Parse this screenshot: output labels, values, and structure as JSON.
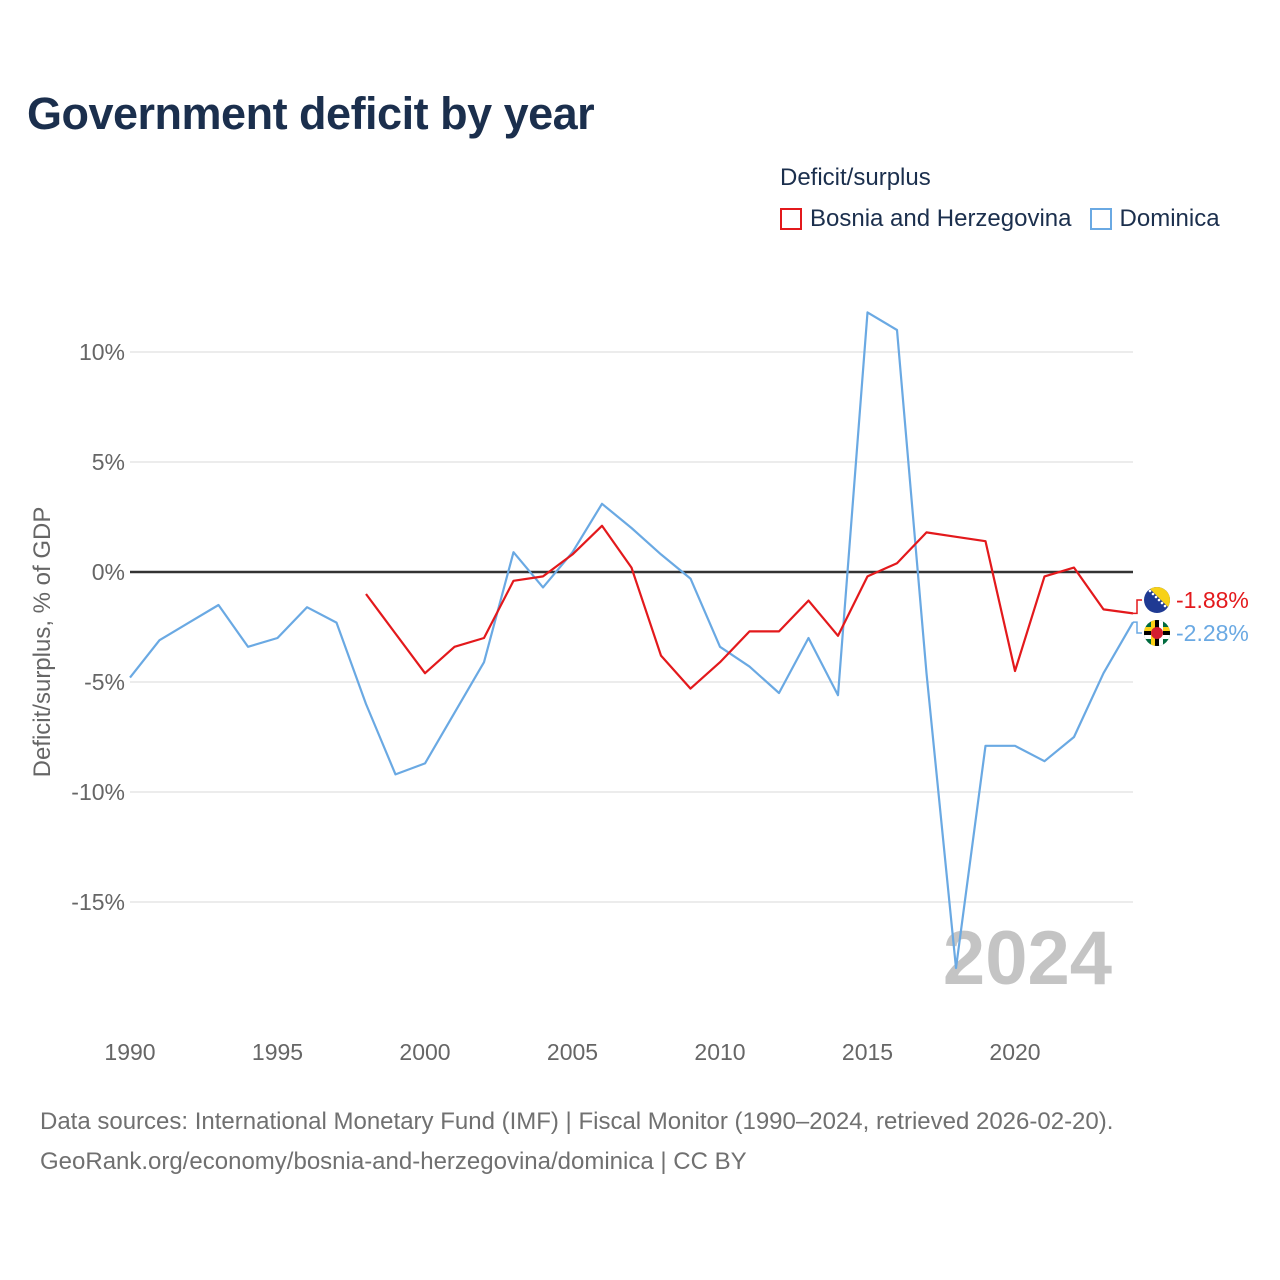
{
  "title": "Government deficit by year",
  "legend": {
    "title": "Deficit/surplus",
    "items": [
      {
        "label": "Bosnia and Herzegovina",
        "color": "#e3191c"
      },
      {
        "label": "Dominica",
        "color": "#6aa9e3"
      }
    ]
  },
  "year_watermark": "2024",
  "source": {
    "line1": "Data sources: International Monetary Fund (IMF) | Fiscal Monitor (1990–2024, retrieved 2026-02-20).",
    "line2": "GeoRank.org/economy/bosnia-and-herzegovina/dominica | CC BY"
  },
  "chart_data": {
    "type": "line",
    "title": "Government deficit by year",
    "xlabel": "",
    "ylabel": "Deficit/surplus, % of GDP",
    "xlim": [
      1990,
      2024
    ],
    "ylim": [
      -20,
      12.5
    ],
    "xticks": [
      {
        "value": 1990,
        "label": "1990"
      },
      {
        "value": 1995,
        "label": "1995"
      },
      {
        "value": 2000,
        "label": "2000"
      },
      {
        "value": 2005,
        "label": "2005"
      },
      {
        "value": 2010,
        "label": "2010"
      },
      {
        "value": 2015,
        "label": "2015"
      },
      {
        "value": 2020,
        "label": "2020"
      }
    ],
    "yticks": [
      {
        "value": 10,
        "label": "10%"
      },
      {
        "value": 5,
        "label": "5%"
      },
      {
        "value": 0,
        "label": "0%"
      },
      {
        "value": -5,
        "label": "-5%"
      },
      {
        "value": -10,
        "label": "-10%"
      },
      {
        "value": -15,
        "label": "-15%"
      }
    ],
    "grid": true,
    "series": [
      {
        "name": "Bosnia and Herzegovina",
        "color": "#e3191c",
        "end_label": "-1.88%",
        "x": [
          1998,
          1999,
          2000,
          2001,
          2002,
          2003,
          2004,
          2005,
          2006,
          2007,
          2008,
          2009,
          2010,
          2011,
          2012,
          2013,
          2014,
          2015,
          2016,
          2017,
          2018,
          2019,
          2020,
          2021,
          2022,
          2023,
          2024
        ],
        "values": [
          -1.0,
          -2.8,
          -4.6,
          -3.4,
          -3.0,
          -0.4,
          -0.2,
          0.8,
          2.1,
          0.2,
          -3.8,
          -5.3,
          -4.1,
          -2.7,
          -2.7,
          -1.3,
          -2.9,
          -0.2,
          0.4,
          1.8,
          1.6,
          1.4,
          -4.5,
          -0.2,
          0.2,
          -1.7,
          -1.88
        ]
      },
      {
        "name": "Dominica",
        "color": "#6aa9e3",
        "end_label": "-2.28%",
        "x": [
          1990,
          1991,
          1992,
          1993,
          1994,
          1995,
          1996,
          1997,
          1998,
          1999,
          2000,
          2001,
          2002,
          2003,
          2004,
          2005,
          2006,
          2007,
          2008,
          2009,
          2010,
          2011,
          2012,
          2013,
          2014,
          2015,
          2016,
          2017,
          2018,
          2019,
          2020,
          2021,
          2022,
          2023,
          2024
        ],
        "values": [
          -4.8,
          -3.1,
          -2.3,
          -1.5,
          -3.4,
          -3.0,
          -1.6,
          -2.3,
          -6.0,
          -9.2,
          -8.7,
          -6.4,
          -4.1,
          0.9,
          -0.7,
          0.9,
          3.1,
          2.0,
          0.8,
          -0.3,
          -3.4,
          -4.3,
          -5.5,
          -3.0,
          -5.6,
          11.8,
          11.0,
          -4.6,
          -18.0,
          -7.9,
          -7.9,
          -8.6,
          -7.5,
          -4.6,
          -2.28
        ]
      }
    ]
  }
}
